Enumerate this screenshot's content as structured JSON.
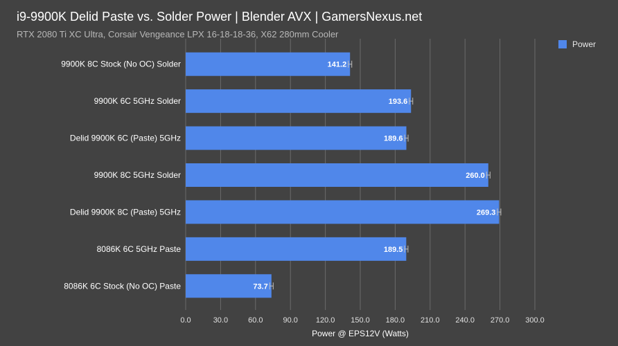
{
  "title": "i9-9900K Delid Paste vs. Solder Power | Blender AVX | GamersNexus.net",
  "subtitle": "RTX 2080 Ti XC Ultra, Corsair Vengeance LPX 16-18-18-36, X62 280mm Cooler",
  "legend": {
    "label": "Power",
    "position": "top-right"
  },
  "colors": {
    "bar": "#5087ea",
    "background": "#424242",
    "grid": "#6a6a6a",
    "errorbar": "#c0c0c0"
  },
  "chart_data": {
    "type": "bar",
    "orientation": "horizontal",
    "title": "i9-9900K Delid Paste vs. Solder Power | Blender AVX | GamersNexus.net",
    "subtitle": "RTX 2080 Ti XC Ultra, Corsair Vengeance LPX 16-18-18-36, X62 280mm Cooler",
    "xlabel": "Power @ EPS12V (Watts)",
    "ylabel": "",
    "xlim": [
      0,
      300
    ],
    "xticks": [
      "0.0",
      "30.0",
      "60.0",
      "90.0",
      "120.0",
      "150.0",
      "180.0",
      "210.0",
      "240.0",
      "270.0",
      "300.0"
    ],
    "grid": true,
    "categories": [
      "9900K 8C Stock (No OC) Solder",
      "9900K 6C 5GHz Solder",
      "Delid 9900K 6C (Paste) 5GHz",
      "9900K 8C 5GHz Solder",
      "Delid 9900K 8C (Paste) 5GHz",
      "8086K 6C 5GHz Paste",
      "8086K 6C Stock (No OC) Paste"
    ],
    "series": [
      {
        "name": "Power",
        "values": [
          141.2,
          193.6,
          189.6,
          260.0,
          269.3,
          189.5,
          73.7
        ],
        "labels": [
          "141.2",
          "193.6",
          "189.6",
          "260.0",
          "269.3",
          "189.5",
          "73.7"
        ]
      }
    ]
  }
}
